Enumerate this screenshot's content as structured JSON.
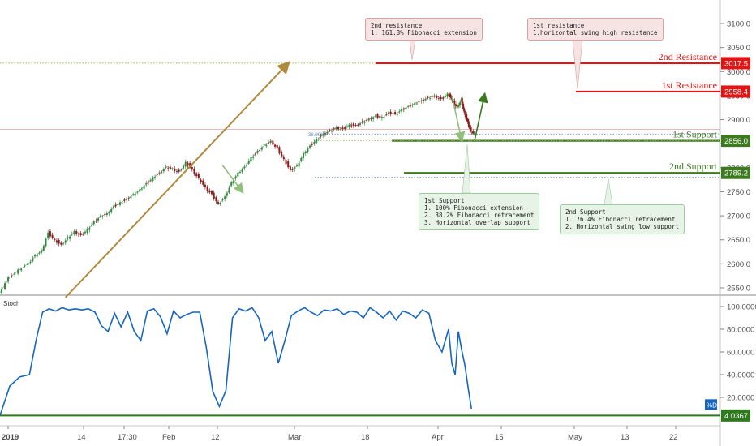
{
  "chart_data": [
    {
      "type": "candlestick",
      "title": "",
      "ylim": [
        2525,
        3135
      ],
      "y_ticks": [
        "3100.0",
        "3050.0",
        "3000.0",
        "2950.0",
        "2900.0",
        "2850.0",
        "2800.0",
        "2750.0",
        "2700.0",
        "2650.0",
        "2600.0",
        "2550.0"
      ],
      "y_tick_values": [
        3100,
        3050,
        3000,
        2950,
        2900,
        2850,
        2800,
        2750,
        2700,
        2650,
        2600,
        2550
      ],
      "x_ticks": [
        "2019",
        "14",
        "17:30",
        "Feb",
        "12",
        "Mar",
        "18",
        "Apr",
        "15",
        "May",
        "13",
        "22"
      ],
      "price_path": [
        [
          0,
          2540
        ],
        [
          3,
          2572
        ],
        [
          6,
          2588
        ],
        [
          9,
          2602
        ],
        [
          11,
          2618
        ],
        [
          13,
          2628
        ],
        [
          15,
          2665
        ],
        [
          17,
          2650
        ],
        [
          19,
          2640
        ],
        [
          21,
          2655
        ],
        [
          23,
          2668
        ],
        [
          25,
          2660
        ],
        [
          27,
          2672
        ],
        [
          29,
          2688
        ],
        [
          31,
          2700
        ],
        [
          33,
          2705
        ],
        [
          35,
          2720
        ],
        [
          37,
          2728
        ],
        [
          39,
          2735
        ],
        [
          41,
          2745
        ],
        [
          43,
          2755
        ],
        [
          45,
          2768
        ],
        [
          47,
          2780
        ],
        [
          49,
          2790
        ],
        [
          51,
          2802
        ],
        [
          53,
          2798
        ],
        [
          55,
          2792
        ],
        [
          57,
          2812
        ],
        [
          59,
          2796
        ],
        [
          61,
          2778
        ],
        [
          63,
          2760
        ],
        [
          65,
          2745
        ],
        [
          67,
          2725
        ],
        [
          69,
          2740
        ],
        [
          71,
          2770
        ],
        [
          73,
          2790
        ],
        [
          75,
          2802
        ],
        [
          77,
          2822
        ],
        [
          79,
          2835
        ],
        [
          81,
          2848
        ],
        [
          83,
          2856
        ],
        [
          85,
          2840
        ],
        [
          87,
          2818
        ],
        [
          89,
          2795
        ],
        [
          91,
          2805
        ],
        [
          93,
          2830
        ],
        [
          95,
          2846
        ],
        [
          97,
          2860
        ],
        [
          99,
          2870
        ],
        [
          101,
          2878
        ],
        [
          103,
          2884
        ],
        [
          105,
          2881
        ],
        [
          107,
          2890
        ],
        [
          109,
          2888
        ],
        [
          111,
          2896
        ],
        [
          113,
          2902
        ],
        [
          115,
          2908
        ],
        [
          117,
          2905
        ],
        [
          119,
          2915
        ],
        [
          121,
          2912
        ],
        [
          123,
          2922
        ],
        [
          125,
          2928
        ],
        [
          127,
          2935
        ],
        [
          129,
          2940
        ],
        [
          131,
          2946
        ],
        [
          133,
          2950
        ],
        [
          135,
          2943
        ],
        [
          137,
          2954
        ],
        [
          138,
          2945
        ],
        [
          139,
          2932
        ],
        [
          140,
          2928
        ],
        [
          141,
          2942
        ],
        [
          142,
          2915
        ],
        [
          143,
          2895
        ],
        [
          144,
          2876
        ],
        [
          145,
          2872
        ]
      ],
      "arrows": [
        {
          "from": [
            20,
            2530
          ],
          "to": [
            88,
            3017.5
          ]
        },
        {
          "from": [
            68,
            2805
          ],
          "to": [
            74,
            2750
          ]
        },
        {
          "from": [
            138,
            2950
          ],
          "to": [
            141,
            2858
          ]
        },
        {
          "from": [
            145,
            2858
          ],
          "to": [
            148,
            2952
          ]
        }
      ],
      "levels": [
        {
          "value": 3017.5,
          "label": "2nd Resistance",
          "tag": "3017.5",
          "color": "#e31414"
        },
        {
          "value": 2958.4,
          "label": "1st Resistance",
          "tag": "2958.4",
          "color": "#e31414"
        },
        {
          "value": 2856.0,
          "label": "1st Support",
          "tag": "2856.0",
          "color": "#3d7a1f"
        },
        {
          "value": 2789.2,
          "label": "2nd Support",
          "tag": "2789.2",
          "color": "#3d7a1f"
        }
      ],
      "fib_labels": [
        "38.20%",
        "1"
      ],
      "callouts": [
        {
          "id": "callout-2nd-resistance",
          "text": "2nd resistance\n1. 161.8% Fibonacci extension",
          "style": "red"
        },
        {
          "id": "callout-1st-resistance",
          "text": "1st resistance\n1.horizontal swing high resistance",
          "style": "red"
        },
        {
          "id": "callout-1st-support",
          "text": "1st Support\n1. 100% Fibonacci extension\n2. 38.2% Fibonacci retracement\n3. Horizontal overlap support",
          "style": "green"
        },
        {
          "id": "callout-2nd-support",
          "text": "2nd Support\n1. 76.4% Fibonacci retracement\n2. Horizontal swing low support",
          "style": "green"
        }
      ]
    },
    {
      "type": "line",
      "title": "Stoch",
      "ylim": [
        0,
        105
      ],
      "y_ticks": [
        "100.0000",
        "80.0000",
        "60.0000",
        "40.0000",
        "20.0000"
      ],
      "y_tick_values": [
        100,
        80,
        60,
        40,
        20
      ],
      "series": [
        {
          "name": "%D",
          "color": "#1565c0",
          "values": [
            [
              0,
              4
            ],
            [
              3,
              30
            ],
            [
              6,
              38
            ],
            [
              9,
              40
            ],
            [
              11,
              70
            ],
            [
              13,
              95
            ],
            [
              15,
              98
            ],
            [
              17,
              96
            ],
            [
              19,
              99
            ],
            [
              21,
              97
            ],
            [
              23,
              98
            ],
            [
              25,
              97
            ],
            [
              27,
              98
            ],
            [
              29,
              95
            ],
            [
              31,
              83
            ],
            [
              33,
              78
            ],
            [
              35,
              94
            ],
            [
              37,
              82
            ],
            [
              39,
              95
            ],
            [
              41,
              78
            ],
            [
              43,
              70
            ],
            [
              45,
              96
            ],
            [
              47,
              98
            ],
            [
              49,
              91
            ],
            [
              51,
              76
            ],
            [
              53,
              96
            ],
            [
              55,
              90
            ],
            [
              57,
              93
            ],
            [
              59,
              95
            ],
            [
              61,
              95
            ],
            [
              63,
              64
            ],
            [
              65,
              25
            ],
            [
              67,
              12
            ],
            [
              69,
              26
            ],
            [
              71,
              90
            ],
            [
              73,
              98
            ],
            [
              75,
              96
            ],
            [
              77,
              99
            ],
            [
              79,
              90
            ],
            [
              81,
              70
            ],
            [
              83,
              78
            ],
            [
              85,
              50
            ],
            [
              87,
              70
            ],
            [
              89,
              92
            ],
            [
              91,
              96
            ],
            [
              93,
              99
            ],
            [
              95,
              95
            ],
            [
              97,
              92
            ],
            [
              99,
              97
            ],
            [
              101,
              96
            ],
            [
              103,
              98
            ],
            [
              105,
              93
            ],
            [
              107,
              96
            ],
            [
              109,
              95
            ],
            [
              111,
              90
            ],
            [
              113,
              99
            ],
            [
              115,
              95
            ],
            [
              117,
              90
            ],
            [
              119,
              96
            ],
            [
              121,
              88
            ],
            [
              123,
              96
            ],
            [
              125,
              94
            ],
            [
              127,
              90
            ],
            [
              129,
              97
            ],
            [
              131,
              94
            ],
            [
              133,
              70
            ],
            [
              135,
              60
            ],
            [
              137,
              80
            ],
            [
              138,
              50
            ],
            [
              139,
              40
            ],
            [
              140,
              78
            ],
            [
              141,
              62
            ],
            [
              142,
              48
            ],
            [
              143,
              28
            ],
            [
              144,
              10
            ]
          ]
        }
      ],
      "last_value": "4.0367",
      "level_value": 4.0367,
      "legend_tag": "%D"
    }
  ]
}
